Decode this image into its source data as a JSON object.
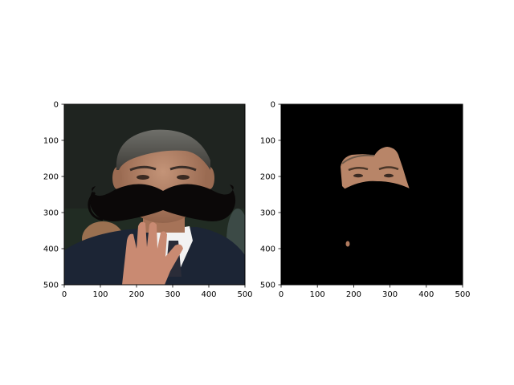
{
  "chart_data": [
    {
      "type": "image",
      "panel": "left",
      "image_extent": {
        "x": [
          0,
          500
        ],
        "y": [
          0,
          500
        ]
      },
      "y_inverted": true,
      "x_ticks": [
        "0",
        "100",
        "200",
        "300",
        "400",
        "500"
      ],
      "y_ticks": [
        "0",
        "100",
        "200",
        "300",
        "400",
        "500"
      ],
      "x_tick_values": [
        0,
        100,
        200,
        300,
        400,
        500
      ],
      "y_tick_values": [
        0,
        100,
        200,
        300,
        400,
        500
      ],
      "grid": false,
      "content": "photo of a man in a dark suit raising his right hand, with a black handlebar mustache overlay across the face"
    },
    {
      "type": "image",
      "panel": "right",
      "image_extent": {
        "x": [
          0,
          500
        ],
        "y": [
          0,
          500
        ]
      },
      "y_inverted": true,
      "x_ticks": [
        "0",
        "100",
        "200",
        "300",
        "400",
        "500"
      ],
      "y_ticks": [
        "0",
        "100",
        "200",
        "300",
        "400",
        "500"
      ],
      "x_tick_values": [
        0,
        100,
        200,
        300,
        400,
        500
      ],
      "y_tick_values": [
        0,
        100,
        200,
        300,
        400,
        500
      ],
      "grid": false,
      "content": "masked image: black background, only the skin region of the upper face (forehead and eyes) remains visible, cut off by the mustache"
    }
  ],
  "colors": {
    "background": "#ffffff",
    "axes_frame": "#000000",
    "photo_background": "#1f2420",
    "mask_background": "#000000",
    "mustache": "#0b0808",
    "skin": "#b88568",
    "suit": "#1c2535",
    "shirt": "#f2f2f2"
  }
}
